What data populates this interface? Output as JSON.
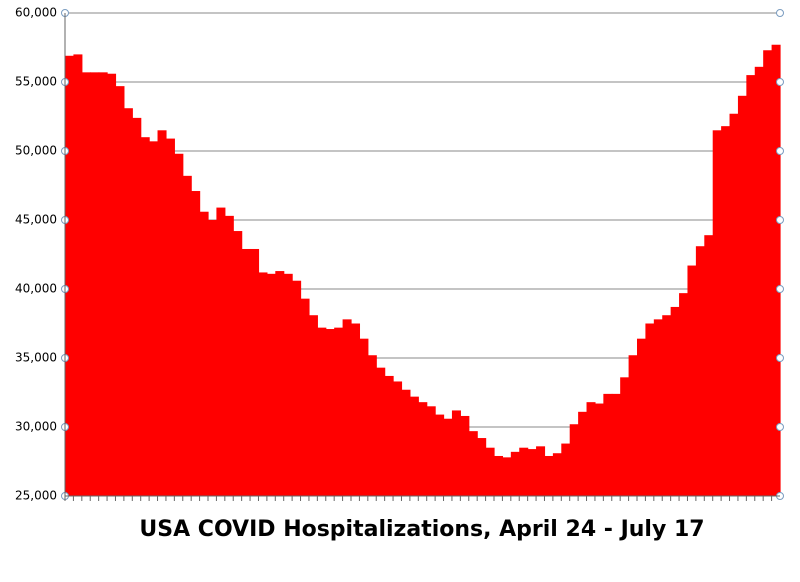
{
  "chart_data": {
    "type": "bar",
    "title": "USA COVID Hospitalizations, April 24 - July 17",
    "categories": [
      null,
      null,
      null,
      null,
      null,
      null,
      null,
      null,
      null,
      null,
      null,
      null,
      null,
      null,
      null,
      null,
      null,
      null,
      null,
      null,
      null,
      null,
      null,
      null,
      null,
      null,
      null,
      null,
      null,
      null,
      null,
      null,
      null,
      null,
      null,
      null,
      null,
      null,
      null,
      null,
      null,
      null,
      null,
      null,
      null,
      null,
      null,
      null,
      null,
      null,
      null,
      null,
      null,
      null,
      null,
      null,
      null,
      null,
      null,
      null,
      null,
      null,
      null,
      null,
      null,
      null,
      null,
      null,
      null,
      null,
      null,
      null,
      null,
      null,
      null,
      null,
      null,
      null,
      null,
      null,
      null,
      null,
      null,
      null,
      null
    ],
    "values": [
      56900,
      57000,
      55700,
      55700,
      55700,
      55600,
      54700,
      53100,
      52400,
      51000,
      50700,
      51500,
      50900,
      49800,
      48200,
      47100,
      45600,
      45000,
      45900,
      45300,
      44200,
      42900,
      42900,
      41200,
      41100,
      41300,
      41100,
      40600,
      39300,
      38100,
      37200,
      37100,
      37200,
      37800,
      37500,
      36400,
      35200,
      34300,
      33700,
      33300,
      32700,
      32200,
      31800,
      31500,
      30900,
      30600,
      31200,
      30800,
      29700,
      29200,
      28500,
      27900,
      27800,
      28200,
      28500,
      28400,
      28600,
      27900,
      28100,
      28800,
      30200,
      31100,
      31800,
      31700,
      32400,
      32400,
      33600,
      35200,
      36400,
      37500,
      37800,
      38100,
      38700,
      39700,
      41700,
      43100,
      43900,
      51500,
      51800,
      52700,
      54000,
      55500,
      56100,
      57300,
      57700
    ],
    "color": "#ff0000",
    "ylim": [
      25000,
      60000
    ],
    "yticks": [
      {
        "value": 25000,
        "label": "25,000"
      },
      {
        "value": 30000,
        "label": "30,000"
      },
      {
        "value": 35000,
        "label": "35,000"
      },
      {
        "value": 40000,
        "label": "40,000"
      },
      {
        "value": 45000,
        "label": "45,000"
      },
      {
        "value": 50000,
        "label": "50,000"
      },
      {
        "value": 55000,
        "label": "55,000"
      },
      {
        "value": 60000,
        "label": "60,000"
      }
    ],
    "grid": true
  }
}
